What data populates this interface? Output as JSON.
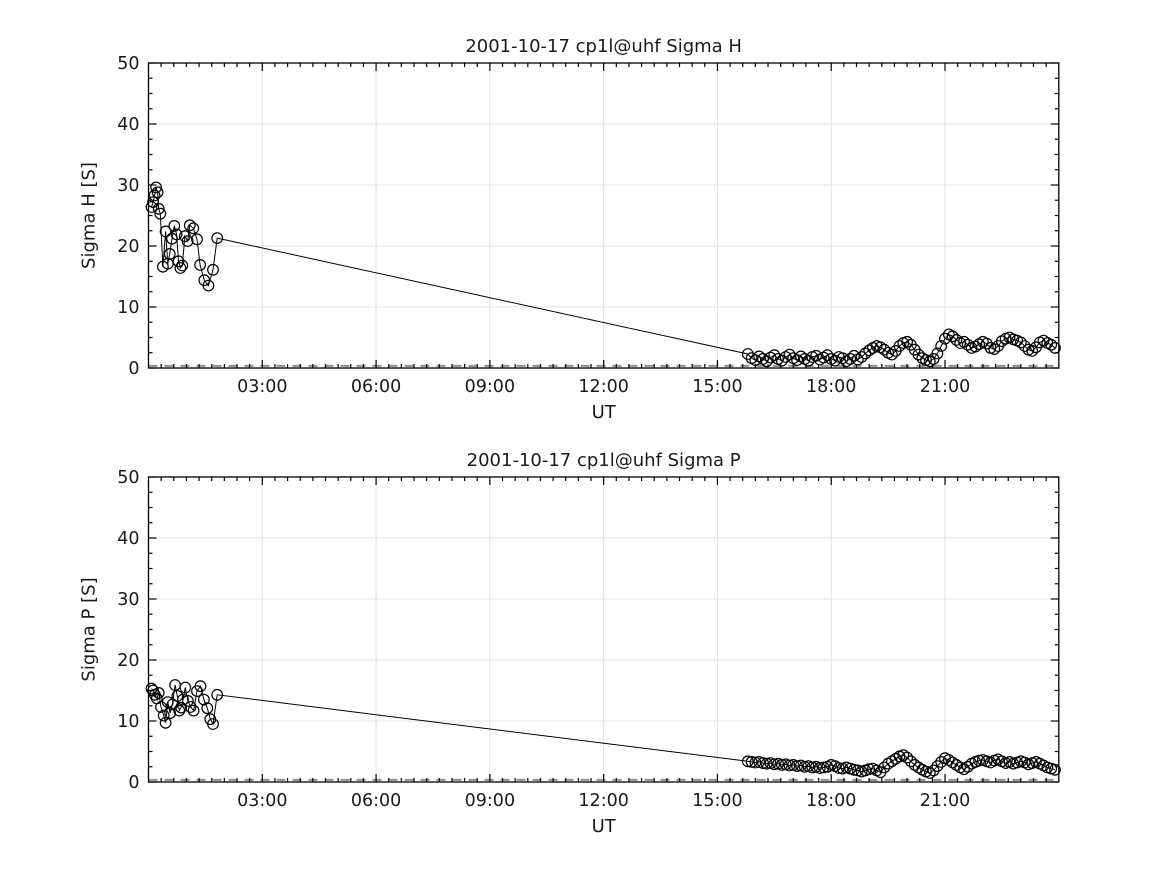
{
  "figure": {
    "background": "#ffffff",
    "colors": {
      "data_line": "#000000",
      "marker_stroke": "#000000",
      "grid": "#e0e0e0",
      "zero_baseline": "#8f8f8f",
      "axes": "#000000",
      "text": "#1a1a1a"
    }
  },
  "chart_data": [
    {
      "type": "line",
      "title": "2001-10-17  cp1l@uhf Sigma H",
      "xlabel": "UT",
      "ylabel": "Sigma H [S]",
      "xlim_hours": [
        0,
        24
      ],
      "ylim": [
        0,
        50
      ],
      "grid": true,
      "legend": "none",
      "marker": "open-circle",
      "xticks": [
        {
          "hour": 3,
          "label": "03:00"
        },
        {
          "hour": 6,
          "label": "06:00"
        },
        {
          "hour": 9,
          "label": "09:00"
        },
        {
          "hour": 12,
          "label": "12:00"
        },
        {
          "hour": 15,
          "label": "15:00"
        },
        {
          "hour": 18,
          "label": "18:00"
        },
        {
          "hour": 21,
          "label": "21:00"
        }
      ],
      "yticks": [
        0,
        10,
        20,
        30,
        40,
        50
      ],
      "minor_tick_x_minutes": 20,
      "minor_tick_y": 2.5,
      "zero_baseline": {
        "value": 0.35,
        "style": "dashed",
        "color": "#8f8f8f"
      },
      "series": [
        {
          "name": "Sigma H",
          "points_hour_value": [
            [
              0.08,
              26.4
            ],
            [
              0.12,
              27.2
            ],
            [
              0.16,
              28.3
            ],
            [
              0.2,
              29.6
            ],
            [
              0.24,
              28.8
            ],
            [
              0.27,
              26.1
            ],
            [
              0.31,
              25.3
            ],
            [
              0.38,
              16.6
            ],
            [
              0.45,
              22.4
            ],
            [
              0.51,
              17.1
            ],
            [
              0.56,
              18.7
            ],
            [
              0.62,
              21.2
            ],
            [
              0.68,
              23.3
            ],
            [
              0.74,
              21.9
            ],
            [
              0.79,
              17.5
            ],
            [
              0.84,
              16.4
            ],
            [
              0.89,
              16.8
            ],
            [
              0.96,
              21.6
            ],
            [
              1.03,
              20.8
            ],
            [
              1.09,
              23.4
            ],
            [
              1.18,
              22.9
            ],
            [
              1.28,
              21.1
            ],
            [
              1.36,
              16.9
            ],
            [
              1.47,
              14.4
            ],
            [
              1.58,
              13.5
            ],
            [
              1.7,
              16.1
            ],
            [
              1.81,
              21.3
            ],
            [
              15.8,
              2.3
            ],
            [
              15.9,
              1.6
            ],
            [
              16.0,
              1.3
            ],
            [
              16.1,
              1.9
            ],
            [
              16.2,
              1.5
            ],
            [
              16.3,
              1.1
            ],
            [
              16.4,
              1.7
            ],
            [
              16.5,
              2.1
            ],
            [
              16.6,
              1.5
            ],
            [
              16.7,
              1.2
            ],
            [
              16.8,
              1.8
            ],
            [
              16.9,
              2.2
            ],
            [
              17.0,
              1.6
            ],
            [
              17.1,
              1.3
            ],
            [
              17.2,
              1.9
            ],
            [
              17.3,
              1.5
            ],
            [
              17.4,
              1.2
            ],
            [
              17.5,
              1.8
            ],
            [
              17.6,
              2.0
            ],
            [
              17.7,
              1.4
            ],
            [
              17.8,
              1.7
            ],
            [
              17.9,
              2.1
            ],
            [
              18.0,
              1.5
            ],
            [
              18.1,
              1.2
            ],
            [
              18.2,
              1.8
            ],
            [
              18.3,
              1.6
            ],
            [
              18.4,
              1.1
            ],
            [
              18.5,
              1.5
            ],
            [
              18.6,
              2.0
            ],
            [
              18.7,
              1.4
            ],
            [
              18.8,
              1.8
            ],
            [
              18.9,
              2.4
            ],
            [
              19.0,
              2.9
            ],
            [
              19.1,
              3.3
            ],
            [
              19.2,
              3.6
            ],
            [
              19.3,
              3.4
            ],
            [
              19.4,
              3.0
            ],
            [
              19.5,
              2.5
            ],
            [
              19.6,
              2.2
            ],
            [
              19.7,
              2.8
            ],
            [
              19.8,
              3.6
            ],
            [
              19.9,
              4.1
            ],
            [
              20.0,
              4.3
            ],
            [
              20.1,
              3.8
            ],
            [
              20.2,
              3.0
            ],
            [
              20.3,
              2.2
            ],
            [
              20.4,
              1.6
            ],
            [
              20.5,
              1.3
            ],
            [
              20.6,
              1.1
            ],
            [
              20.7,
              1.5
            ],
            [
              20.8,
              2.4
            ],
            [
              20.9,
              3.6
            ],
            [
              21.0,
              4.8
            ],
            [
              21.1,
              5.5
            ],
            [
              21.2,
              5.2
            ],
            [
              21.3,
              4.6
            ],
            [
              21.4,
              4.1
            ],
            [
              21.5,
              4.3
            ],
            [
              21.6,
              3.8
            ],
            [
              21.7,
              3.3
            ],
            [
              21.8,
              3.5
            ],
            [
              21.9,
              3.9
            ],
            [
              22.0,
              4.3
            ],
            [
              22.1,
              4.0
            ],
            [
              22.2,
              3.3
            ],
            [
              22.3,
              3.1
            ],
            [
              22.4,
              3.6
            ],
            [
              22.5,
              4.4
            ],
            [
              22.6,
              4.8
            ],
            [
              22.7,
              5.0
            ],
            [
              22.8,
              4.7
            ],
            [
              22.9,
              4.5
            ],
            [
              23.0,
              4.2
            ],
            [
              23.1,
              3.6
            ],
            [
              23.2,
              3.0
            ],
            [
              23.3,
              2.8
            ],
            [
              23.4,
              3.4
            ],
            [
              23.5,
              4.2
            ],
            [
              23.6,
              4.5
            ],
            [
              23.7,
              4.1
            ],
            [
              23.8,
              3.8
            ],
            [
              23.9,
              3.3
            ]
          ]
        }
      ]
    },
    {
      "type": "line",
      "title": "2001-10-17  cp1l@uhf Sigma P",
      "xlabel": "UT",
      "ylabel": "Sigma P [S]",
      "xlim_hours": [
        0,
        24
      ],
      "ylim": [
        0,
        50
      ],
      "grid": true,
      "legend": "none",
      "marker": "open-circle",
      "xticks": [
        {
          "hour": 3,
          "label": "03:00"
        },
        {
          "hour": 6,
          "label": "06:00"
        },
        {
          "hour": 9,
          "label": "09:00"
        },
        {
          "hour": 12,
          "label": "12:00"
        },
        {
          "hour": 15,
          "label": "15:00"
        },
        {
          "hour": 18,
          "label": "18:00"
        },
        {
          "hour": 21,
          "label": "21:00"
        }
      ],
      "yticks": [
        0,
        10,
        20,
        30,
        40,
        50
      ],
      "minor_tick_x_minutes": 20,
      "minor_tick_y": 2.5,
      "zero_baseline": {
        "value": 0.35,
        "style": "dashed",
        "color": "#8f8f8f"
      },
      "series": [
        {
          "name": "Sigma P",
          "points_hour_value": [
            [
              0.08,
              15.3
            ],
            [
              0.12,
              15.0
            ],
            [
              0.17,
              14.3
            ],
            [
              0.22,
              13.7
            ],
            [
              0.27,
              14.6
            ],
            [
              0.33,
              12.3
            ],
            [
              0.4,
              10.9
            ],
            [
              0.45,
              9.7
            ],
            [
              0.51,
              13.1
            ],
            [
              0.57,
              11.3
            ],
            [
              0.63,
              12.7
            ],
            [
              0.7,
              15.9
            ],
            [
              0.76,
              14.1
            ],
            [
              0.81,
              11.7
            ],
            [
              0.86,
              12.2
            ],
            [
              0.91,
              13.5
            ],
            [
              0.97,
              15.5
            ],
            [
              1.04,
              13.3
            ],
            [
              1.11,
              12.3
            ],
            [
              1.19,
              11.7
            ],
            [
              1.28,
              14.9
            ],
            [
              1.37,
              15.7
            ],
            [
              1.46,
              13.5
            ],
            [
              1.55,
              12.1
            ],
            [
              1.63,
              10.3
            ],
            [
              1.7,
              9.5
            ],
            [
              1.81,
              14.3
            ],
            [
              15.8,
              3.4
            ],
            [
              15.9,
              3.3
            ],
            [
              16.0,
              3.2
            ],
            [
              16.1,
              3.3
            ],
            [
              16.2,
              3.1
            ],
            [
              16.3,
              3.0
            ],
            [
              16.4,
              3.1
            ],
            [
              16.5,
              2.9
            ],
            [
              16.6,
              3.0
            ],
            [
              16.7,
              2.8
            ],
            [
              16.8,
              2.9
            ],
            [
              16.9,
              2.7
            ],
            [
              17.0,
              2.8
            ],
            [
              17.1,
              2.6
            ],
            [
              17.2,
              2.7
            ],
            [
              17.3,
              2.5
            ],
            [
              17.4,
              2.6
            ],
            [
              17.5,
              2.4
            ],
            [
              17.6,
              2.5
            ],
            [
              17.7,
              2.3
            ],
            [
              17.8,
              2.4
            ],
            [
              17.9,
              2.5
            ],
            [
              18.0,
              2.8
            ],
            [
              18.1,
              2.6
            ],
            [
              18.2,
              2.3
            ],
            [
              18.3,
              2.2
            ],
            [
              18.4,
              2.4
            ],
            [
              18.5,
              2.2
            ],
            [
              18.6,
              2.0
            ],
            [
              18.7,
              1.9
            ],
            [
              18.8,
              1.7
            ],
            [
              18.9,
              1.9
            ],
            [
              19.0,
              2.1
            ],
            [
              19.1,
              2.2
            ],
            [
              19.2,
              1.9
            ],
            [
              19.3,
              1.6
            ],
            [
              19.4,
              2.4
            ],
            [
              19.5,
              3.0
            ],
            [
              19.6,
              3.4
            ],
            [
              19.7,
              3.8
            ],
            [
              19.8,
              4.2
            ],
            [
              19.9,
              4.4
            ],
            [
              20.0,
              4.0
            ],
            [
              20.1,
              3.4
            ],
            [
              20.2,
              2.8
            ],
            [
              20.3,
              2.4
            ],
            [
              20.4,
              2.0
            ],
            [
              20.5,
              1.7
            ],
            [
              20.6,
              1.5
            ],
            [
              20.7,
              1.9
            ],
            [
              20.8,
              2.6
            ],
            [
              20.9,
              3.3
            ],
            [
              21.0,
              3.9
            ],
            [
              21.1,
              3.6
            ],
            [
              21.2,
              3.2
            ],
            [
              21.3,
              2.8
            ],
            [
              21.4,
              2.4
            ],
            [
              21.5,
              2.1
            ],
            [
              21.6,
              2.5
            ],
            [
              21.7,
              3.0
            ],
            [
              21.8,
              3.3
            ],
            [
              21.9,
              3.5
            ],
            [
              22.0,
              3.6
            ],
            [
              22.1,
              3.4
            ],
            [
              22.2,
              3.2
            ],
            [
              22.3,
              3.5
            ],
            [
              22.4,
              3.7
            ],
            [
              22.5,
              3.4
            ],
            [
              22.6,
              3.1
            ],
            [
              22.7,
              3.3
            ],
            [
              22.8,
              3.0
            ],
            [
              22.9,
              3.2
            ],
            [
              23.0,
              3.4
            ],
            [
              23.1,
              3.2
            ],
            [
              23.2,
              2.9
            ],
            [
              23.3,
              3.1
            ],
            [
              23.4,
              3.3
            ],
            [
              23.5,
              3.0
            ],
            [
              23.6,
              2.7
            ],
            [
              23.7,
              2.4
            ],
            [
              23.8,
              2.2
            ],
            [
              23.9,
              2.0
            ]
          ]
        }
      ]
    }
  ]
}
